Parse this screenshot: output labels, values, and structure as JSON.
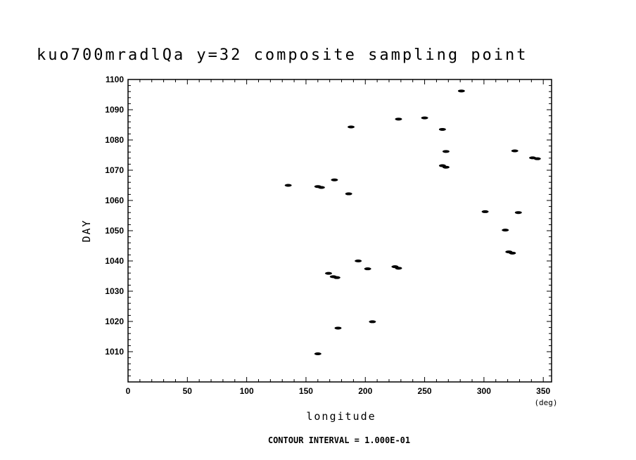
{
  "chart_data": {
    "type": "scatter",
    "title": "kuo700mradlQa y=32 composite sampling point",
    "xlabel": "longitude",
    "xunit": "(deg)",
    "ylabel": "DAY",
    "xlim": [
      0,
      357
    ],
    "ylim": [
      1000,
      1100
    ],
    "xticks": [
      "0",
      "50",
      "100",
      "150",
      "200",
      "250",
      "300",
      "350"
    ],
    "yticks": [
      "1010",
      "1020",
      "1030",
      "1040",
      "1050",
      "1060",
      "1070",
      "1080",
      "1090",
      "1100"
    ],
    "grid": false,
    "footer": "CONTOUR INTERVAL = 1.000E-01",
    "points": [
      {
        "x": 281,
        "y": 1096.2
      },
      {
        "x": 250,
        "y": 1087.3
      },
      {
        "x": 228,
        "y": 1086.9
      },
      {
        "x": 188,
        "y": 1084.3
      },
      {
        "x": 265,
        "y": 1083.5
      },
      {
        "x": 268,
        "y": 1076.2
      },
      {
        "x": 326,
        "y": 1076.4
      },
      {
        "x": 341,
        "y": 1074.1
      },
      {
        "x": 345,
        "y": 1073.8
      },
      {
        "x": 265,
        "y": 1071.5
      },
      {
        "x": 268,
        "y": 1071.0
      },
      {
        "x": 174,
        "y": 1066.8
      },
      {
        "x": 135,
        "y": 1065.0
      },
      {
        "x": 160,
        "y": 1064.6
      },
      {
        "x": 163,
        "y": 1064.3
      },
      {
        "x": 186,
        "y": 1062.2
      },
      {
        "x": 301,
        "y": 1056.3
      },
      {
        "x": 329,
        "y": 1056.0
      },
      {
        "x": 318,
        "y": 1050.2
      },
      {
        "x": 321,
        "y": 1043.0
      },
      {
        "x": 324,
        "y": 1042.6
      },
      {
        "x": 194,
        "y": 1040.0
      },
      {
        "x": 202,
        "y": 1037.4
      },
      {
        "x": 225,
        "y": 1038.1
      },
      {
        "x": 228,
        "y": 1037.6
      },
      {
        "x": 169,
        "y": 1035.9
      },
      {
        "x": 173,
        "y": 1034.8
      },
      {
        "x": 176,
        "y": 1034.5
      },
      {
        "x": 206,
        "y": 1019.9
      },
      {
        "x": 177,
        "y": 1017.8
      },
      {
        "x": 160,
        "y": 1009.3
      }
    ]
  }
}
